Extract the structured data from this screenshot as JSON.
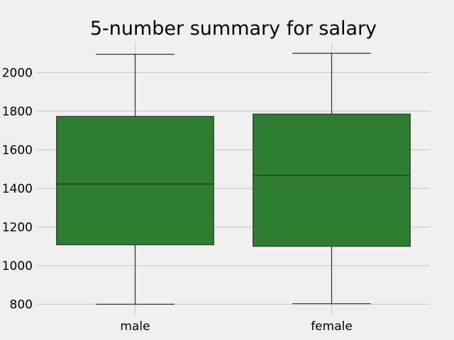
{
  "chart_data": {
    "type": "box",
    "title": "5-number summary for salary",
    "xlabel": "",
    "ylabel": "",
    "categories": [
      "male",
      "female"
    ],
    "boxes": [
      {
        "category": "male",
        "min": 800,
        "q1": 1108,
        "median": 1423,
        "q3": 1773,
        "max": 2095
      },
      {
        "category": "female",
        "min": 803,
        "q1": 1100,
        "median": 1468,
        "q3": 1785,
        "max": 2100
      }
    ],
    "yticks": [
      800,
      1000,
      1200,
      1400,
      1600,
      1800,
      2000
    ],
    "ylim": [
      752,
      2156
    ],
    "grid": true,
    "colors": {
      "background": "#f0f0f0",
      "box_fill": "#2e7d32",
      "line": "#333333",
      "grid": "#cbcbcb",
      "text": "#000000"
    }
  }
}
